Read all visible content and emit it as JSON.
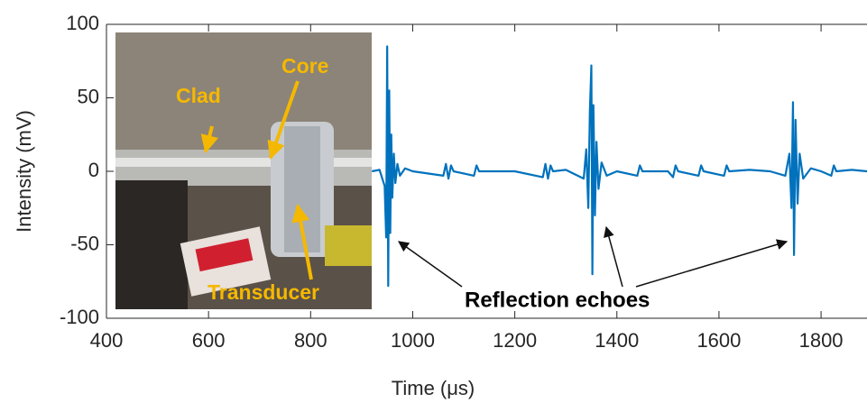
{
  "chart_data": {
    "type": "line",
    "xlabel": "Time (μs)",
    "ylabel": "Intensity (mV)",
    "inset_labels": [
      "Clad",
      "Core",
      "Transducer"
    ],
    "annotation": "Reflection echoes",
    "xlim": [
      400,
      1890
    ],
    "ylim": [
      -100,
      100
    ],
    "xticks": [
      400,
      600,
      800,
      1000,
      1200,
      1400,
      1600,
      1800
    ],
    "yticks": [
      -100,
      -50,
      0,
      50,
      100
    ],
    "grid": false,
    "x": [
      920,
      935,
      945,
      948,
      950,
      952,
      954,
      956,
      958,
      960,
      963,
      966,
      970,
      975,
      985,
      1000,
      1060,
      1065,
      1070,
      1075,
      1080,
      1120,
      1125,
      1130,
      1200,
      1255,
      1260,
      1265,
      1270,
      1275,
      1300,
      1335,
      1340,
      1344,
      1347,
      1350,
      1352,
      1354,
      1357,
      1360,
      1364,
      1370,
      1380,
      1400,
      1440,
      1445,
      1450,
      1500,
      1510,
      1515,
      1520,
      1560,
      1565,
      1570,
      1610,
      1615,
      1620,
      1660,
      1700,
      1730,
      1738,
      1742,
      1745,
      1747,
      1750,
      1754,
      1758,
      1765,
      1780,
      1800,
      1820,
      1825,
      1830,
      1860,
      1890
    ],
    "series": [
      {
        "color": "#0072bd",
        "values": [
          0,
          1,
          -10,
          -45,
          85,
          -78,
          55,
          -42,
          25,
          -18,
          12,
          -8,
          5,
          -3,
          2,
          0,
          -3,
          5,
          -5,
          4,
          0,
          -3,
          4,
          0,
          0,
          -4,
          5,
          -5,
          4,
          0,
          1,
          -5,
          15,
          -25,
          40,
          72,
          -70,
          45,
          -30,
          20,
          -12,
          6,
          -3,
          0,
          -3,
          4,
          0,
          0,
          -4,
          4,
          0,
          -3,
          4,
          0,
          -3,
          4,
          0,
          1,
          0,
          -3,
          12,
          -25,
          47,
          -57,
          35,
          -22,
          12,
          -5,
          2,
          0,
          -3,
          4,
          0,
          1,
          0
        ]
      }
    ]
  }
}
